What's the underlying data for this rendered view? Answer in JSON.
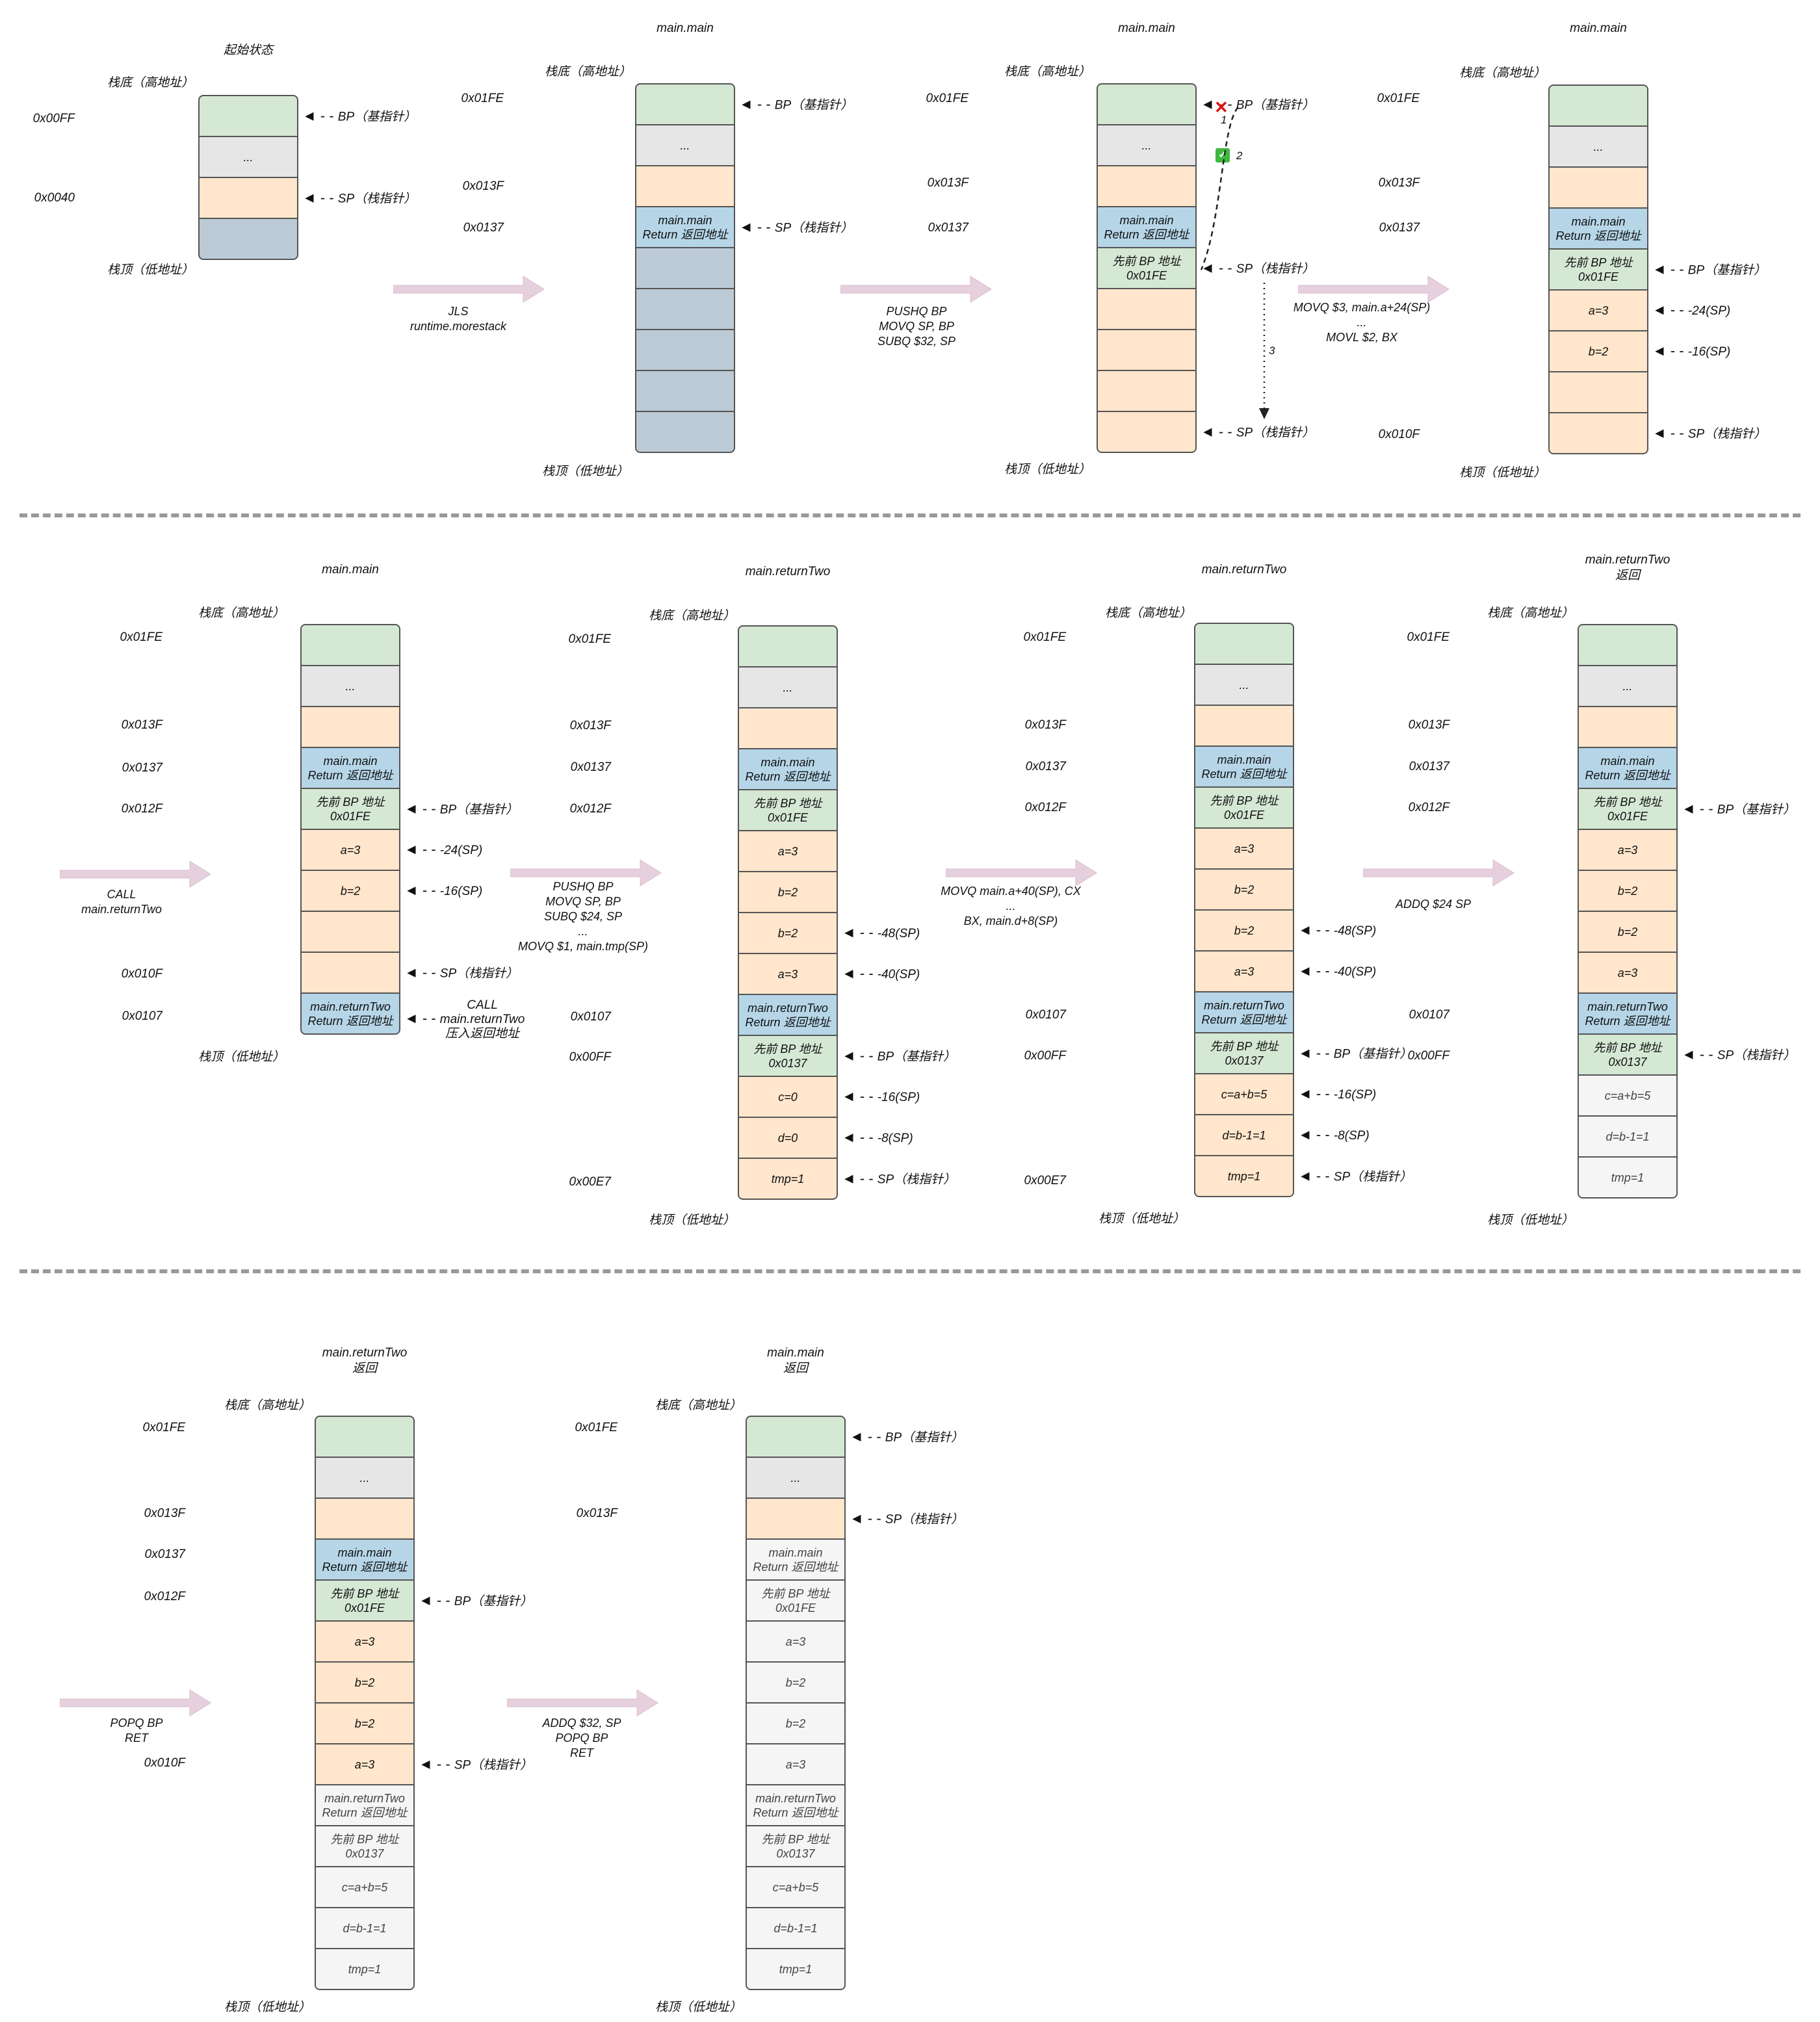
{
  "colors": {
    "green": "#d5e8d4",
    "gray": "#e6e6e6",
    "peach": "#ffe6cc",
    "blue": "#b6d6e8",
    "slate": "#bccad6",
    "white": "#f5f5f5",
    "arrow": "#e6d0de"
  },
  "labels": {
    "bottom": "栈底（高地址）",
    "top": "栈顶（低地址）",
    "bp": "BP（基指针）",
    "sp": "SP（栈指针）"
  },
  "panels": [
    {
      "title": "起始状态",
      "addresses": [
        "0x00FF",
        "0x0040"
      ],
      "cells": [
        "",
        "...",
        "",
        ""
      ],
      "pointers": [
        "BP（基指针）",
        "SP（栈指针）"
      ]
    },
    {
      "title": "main.main",
      "addresses": [
        "0x01FE",
        "0x013F",
        "0x0137"
      ],
      "cells": [
        "",
        "...",
        "",
        "main.main\nReturn 返回地址",
        "",
        "",
        "",
        "",
        ""
      ],
      "pointers": [
        "BP（基指针）",
        "SP（栈指针）"
      ]
    },
    {
      "title": "main.main",
      "addresses": [
        "0x01FE",
        "0x013F",
        "0x0137"
      ],
      "cells": [
        "",
        "...",
        "",
        "main.main\nReturn 返回地址",
        "先前 BP 地址\n0x01FE",
        "",
        "",
        "",
        ""
      ],
      "pointers": [
        "BP（基指针）",
        "SP（栈指针）",
        "SP（栈指针）"
      ],
      "steps": [
        "1",
        "2",
        "3"
      ]
    },
    {
      "title": "main.main",
      "addresses": [
        "0x01FE",
        "0x013F",
        "0x0137",
        "0x010F"
      ],
      "cells": [
        "",
        "...",
        "",
        "main.main\nReturn 返回地址",
        "先前 BP 地址\n0x01FE",
        "a=3",
        "b=2",
        "",
        ""
      ],
      "pointers": [
        "BP（基指针）",
        "-24(SP)",
        "-16(SP)",
        "SP（栈指针）"
      ]
    },
    {
      "title": "main.main",
      "addresses": [
        "0x01FE",
        "0x013F",
        "0x0137",
        "0x012F",
        "0x010F",
        "0x0107"
      ],
      "cells": [
        "",
        "...",
        "",
        "main.main\nReturn 返回地址",
        "先前 BP 地址\n0x01FE",
        "a=3",
        "b=2",
        "",
        "",
        "main.returnTwo\nReturn 返回地址"
      ],
      "pointers": [
        "BP（基指针）",
        "-24(SP)",
        "-16(SP)",
        "SP（栈指针）",
        "CALL\nmain.returnTwo\n压入返回地址"
      ]
    },
    {
      "title": "main.returnTwo",
      "addresses": [
        "0x01FE",
        "0x013F",
        "0x0137",
        "0x012F",
        "0x0107",
        "0x00FF",
        "0x00E7"
      ],
      "cells": [
        "",
        "...",
        "",
        "main.main\nReturn 返回地址",
        "先前 BP 地址\n0x01FE",
        "a=3",
        "b=2",
        "b=2",
        "a=3",
        "main.returnTwo\nReturn 返回地址",
        "先前 BP 地址\n0x0137",
        "c=0",
        "d=0",
        "tmp=1"
      ],
      "pointers": [
        "-48(SP)",
        "-40(SP)",
        "BP（基指针）",
        "-16(SP)",
        "-8(SP)",
        "SP（栈指针）"
      ]
    },
    {
      "title": "main.returnTwo",
      "addresses": [
        "0x01FE",
        "0x013F",
        "0x0137",
        "0x012F",
        "0x0107",
        "0x00FF",
        "0x00E7"
      ],
      "cells": [
        "",
        "...",
        "",
        "main.main\nReturn 返回地址",
        "先前 BP 地址\n0x01FE",
        "a=3",
        "b=2",
        "b=2",
        "a=3",
        "main.returnTwo\nReturn 返回地址",
        "先前 BP 地址\n0x0137",
        "c=a+b=5",
        "d=b-1=1",
        "tmp=1"
      ],
      "pointers": [
        "-48(SP)",
        "-40(SP)",
        "BP（基指针）",
        "-16(SP)",
        "-8(SP)",
        "SP（栈指针）"
      ]
    },
    {
      "title": "main.returnTwo\n返回",
      "addresses": [
        "0x01FE",
        "0x013F",
        "0x0137",
        "0x012F",
        "0x0107",
        "0x00FF"
      ],
      "cells": [
        "",
        "...",
        "",
        "main.main\nReturn 返回地址",
        "先前 BP 地址\n0x01FE",
        "a=3",
        "b=2",
        "b=2",
        "a=3",
        "main.returnTwo\nReturn 返回地址",
        "先前 BP 地址\n0x0137",
        "c=a+b=5",
        "d=b-1=1",
        "tmp=1"
      ],
      "pointers": [
        "BP（基指针）",
        "SP（栈指针）"
      ]
    },
    {
      "title": "main.returnTwo\n返回",
      "addresses": [
        "0x01FE",
        "0x013F",
        "0x0137",
        "0x012F",
        "0x010F"
      ],
      "cells": [
        "",
        "...",
        "",
        "main.main\nReturn 返回地址",
        "先前 BP 地址\n0x01FE",
        "a=3",
        "b=2",
        "b=2",
        "a=3",
        "main.returnTwo\nReturn 返回地址",
        "先前 BP 地址\n0x0137",
        "c=a+b=5",
        "d=b-1=1",
        "tmp=1"
      ],
      "pointers": [
        "BP（基指针）",
        "SP（栈指针）"
      ]
    },
    {
      "title": "main.main\n返回",
      "addresses": [
        "0x01FE",
        "0x013F"
      ],
      "cells": [
        "",
        "...",
        "",
        "main.main\nReturn 返回地址",
        "先前 BP 地址\n0x01FE",
        "a=3",
        "b=2",
        "b=2",
        "a=3",
        "main.returnTwo\nReturn 返回地址",
        "先前 BP 地址\n0x0137",
        "c=a+b=5",
        "d=b-1=1",
        "tmp=1"
      ],
      "pointers": [
        "BP（基指针）",
        "SP（栈指针）"
      ]
    }
  ],
  "operations": [
    "JLS\nruntime.morestack",
    "PUSHQ   BP\nMOVQ     SP, BP\nSUBQ $32, SP",
    "MOVQ $3, main.a+24(SP)\n...\nMOVL $2, BX",
    "CALL\nmain.returnTwo",
    "PUSHQ   BP\nMOVQ     SP, BP\nSUBQ $24, SP\n...\nMOVQ     $1, main.tmp(SP)",
    "MOVQ     main.a+40(SP), CX\n...\nBX, main.d+8(SP)",
    "ADDQ $24 SP",
    "POPQ BP\nRET",
    "ADDQ $32, SP\nPOPQ BP\nRET"
  ]
}
